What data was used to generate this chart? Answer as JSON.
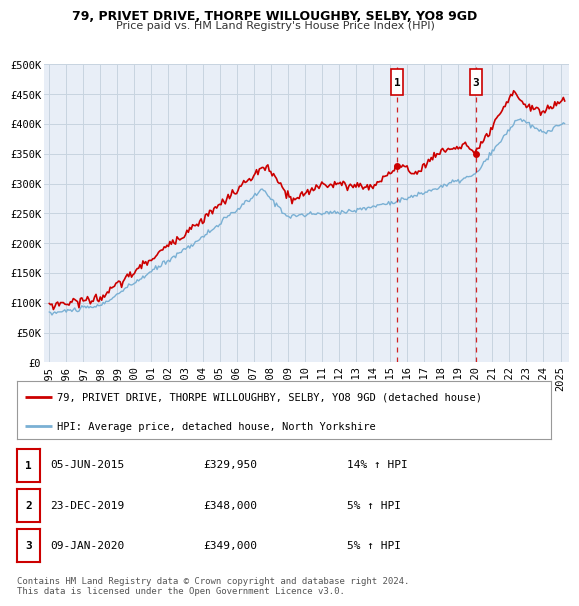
{
  "title": "79, PRIVET DRIVE, THORPE WILLOUGHBY, SELBY, YO8 9GD",
  "subtitle": "Price paid vs. HM Land Registry's House Price Index (HPI)",
  "hpi_label": "HPI: Average price, detached house, North Yorkshire",
  "property_label": "79, PRIVET DRIVE, THORPE WILLOUGHBY, SELBY, YO8 9GD (detached house)",
  "property_color": "#cc0000",
  "hpi_color": "#7ab0d4",
  "ylim": [
    0,
    500000
  ],
  "yticks": [
    0,
    50000,
    100000,
    150000,
    200000,
    250000,
    300000,
    350000,
    400000,
    450000,
    500000
  ],
  "ytick_labels": [
    "£0",
    "£50K",
    "£100K",
    "£150K",
    "£200K",
    "£250K",
    "£300K",
    "£350K",
    "£400K",
    "£450K",
    "£500K"
  ],
  "xlim_start": 1994.7,
  "xlim_end": 2025.5,
  "xticks": [
    1995,
    1996,
    1997,
    1998,
    1999,
    2000,
    2001,
    2002,
    2003,
    2004,
    2005,
    2006,
    2007,
    2008,
    2009,
    2010,
    2011,
    2012,
    2013,
    2014,
    2015,
    2016,
    2017,
    2018,
    2019,
    2020,
    2021,
    2022,
    2023,
    2024,
    2025
  ],
  "annotations": [
    {
      "label": "1",
      "vline_x": 2015.43,
      "dot_y": 329950
    },
    {
      "label": "3",
      "vline_x": 2020.03,
      "dot_y": 349000
    }
  ],
  "table_rows": [
    {
      "num": "1",
      "date": "05-JUN-2015",
      "price": "£329,950",
      "hpi": "14% ↑ HPI"
    },
    {
      "num": "2",
      "date": "23-DEC-2019",
      "price": "£348,000",
      "hpi": "5% ↑ HPI"
    },
    {
      "num": "3",
      "date": "09-JAN-2020",
      "price": "£349,000",
      "hpi": "5% ↑ HPI"
    }
  ],
  "footnote": "Contains HM Land Registry data © Crown copyright and database right 2024.\nThis data is licensed under the Open Government Licence v3.0.",
  "plot_bg_color": "#e8eef7",
  "grid_color": "#c8d4e0"
}
